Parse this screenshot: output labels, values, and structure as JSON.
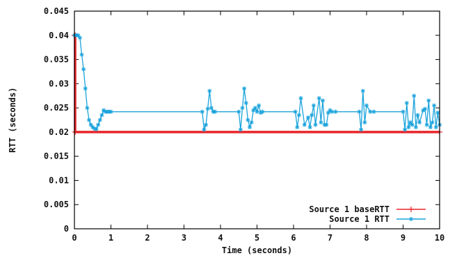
{
  "chart_data": {
    "type": "line",
    "title": "",
    "xlabel": "Time (seconds)",
    "ylabel": "RTT (seconds)",
    "xlim": [
      0,
      10
    ],
    "ylim": [
      0,
      0.045
    ],
    "x_ticks": [
      0,
      1,
      2,
      3,
      4,
      5,
      6,
      7,
      8,
      9,
      10
    ],
    "x_tick_labels": [
      "0",
      "1",
      "2",
      "3",
      "4",
      "5",
      "6",
      "7",
      "8",
      "9",
      "10"
    ],
    "y_ticks": [
      0,
      0.005,
      0.01,
      0.015,
      0.02,
      0.025,
      0.03,
      0.035,
      0.04,
      0.045
    ],
    "y_tick_labels": [
      "0",
      "0.005",
      "0.01",
      "0.015",
      "0.02",
      "0.025",
      "0.03",
      "0.035",
      "0.04",
      "0.045"
    ],
    "grid": false,
    "legend_position": "bottom-right",
    "series": [
      {
        "name": "Source 1 baseRTT",
        "color": "#e8262a",
        "marker": "plus",
        "x": [
          0,
          0.02,
          0.02,
          10
        ],
        "y": [
          0.04,
          0.04,
          0.02,
          0.02
        ]
      },
      {
        "name": "Source 1 RTT",
        "color": "#1aa3dc",
        "marker": "star",
        "x": [
          0,
          0.05,
          0.1,
          0.15,
          0.2,
          0.25,
          0.3,
          0.35,
          0.4,
          0.45,
          0.5,
          0.55,
          0.6,
          0.65,
          0.7,
          0.75,
          0.8,
          0.85,
          0.9,
          0.95,
          1.0,
          3.5,
          3.55,
          3.6,
          3.65,
          3.7,
          3.75,
          3.8,
          3.85,
          4.5,
          4.55,
          4.6,
          4.65,
          4.7,
          4.75,
          4.8,
          4.85,
          4.9,
          4.95,
          5.0,
          5.05,
          5.1,
          5.15,
          6.05,
          6.1,
          6.15,
          6.2,
          6.3,
          6.4,
          6.45,
          6.5,
          6.55,
          6.6,
          6.7,
          6.75,
          6.8,
          6.85,
          6.9,
          6.95,
          7.0,
          7.05,
          7.15,
          7.8,
          7.85,
          7.9,
          7.95,
          8.0,
          8.1,
          8.2,
          9.0,
          9.05,
          9.1,
          9.15,
          9.2,
          9.25,
          9.3,
          9.35,
          9.4,
          9.45,
          9.55,
          9.6,
          9.65,
          9.7,
          9.75,
          9.8,
          9.85,
          9.9,
          9.95,
          10.0
        ],
        "y": [
          0.04,
          0.04,
          0.04,
          0.0395,
          0.036,
          0.033,
          0.029,
          0.025,
          0.0225,
          0.0215,
          0.021,
          0.0207,
          0.0206,
          0.0215,
          0.0225,
          0.0235,
          0.0245,
          0.0242,
          0.0242,
          0.0242,
          0.0242,
          0.0242,
          0.0205,
          0.0215,
          0.0248,
          0.0285,
          0.025,
          0.0242,
          0.0242,
          0.0242,
          0.0205,
          0.025,
          0.029,
          0.026,
          0.0225,
          0.021,
          0.022,
          0.0245,
          0.025,
          0.0242,
          0.0255,
          0.024,
          0.0242,
          0.0242,
          0.021,
          0.0235,
          0.027,
          0.0215,
          0.023,
          0.021,
          0.0235,
          0.0255,
          0.0215,
          0.027,
          0.022,
          0.0265,
          0.0215,
          0.0215,
          0.024,
          0.0245,
          0.0242,
          0.0242,
          0.0242,
          0.0205,
          0.0285,
          0.022,
          0.0255,
          0.0242,
          0.0242,
          0.0242,
          0.0205,
          0.026,
          0.021,
          0.022,
          0.0215,
          0.0275,
          0.021,
          0.0235,
          0.022,
          0.0245,
          0.0248,
          0.0215,
          0.0265,
          0.021,
          0.022,
          0.0255,
          0.021,
          0.024,
          0.0215
        ]
      }
    ]
  }
}
